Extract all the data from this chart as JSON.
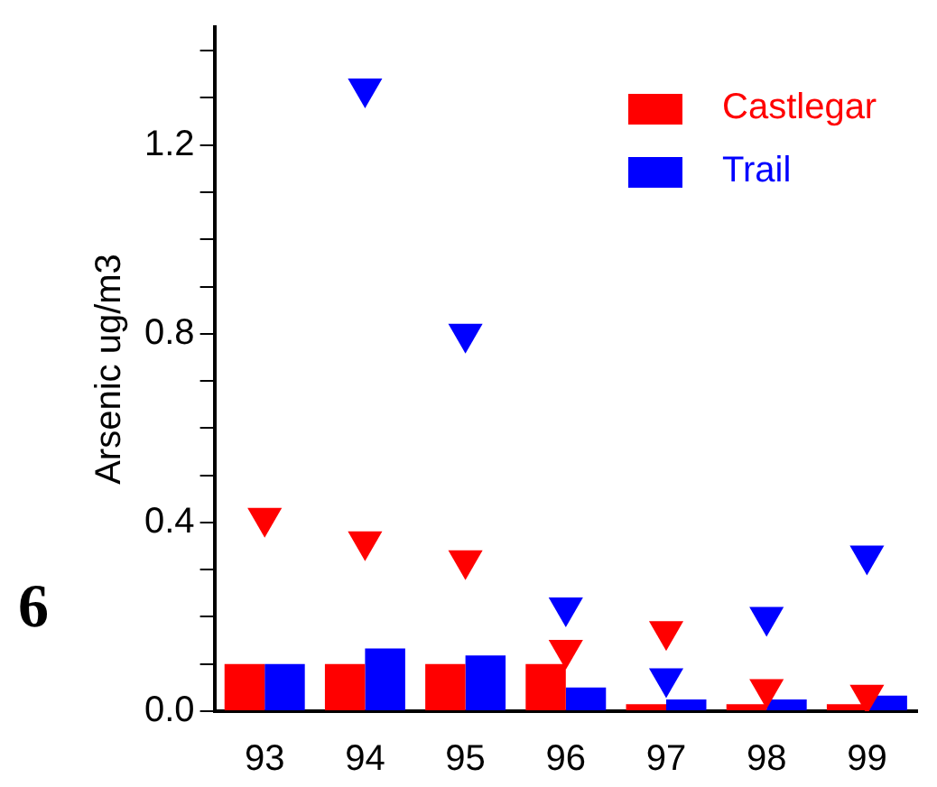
{
  "chart_data": {
    "type": "bar",
    "ylabel": "Arsenic ug/m3",
    "categories": [
      "93",
      "94",
      "95",
      "96",
      "97",
      "98",
      "99"
    ],
    "series": [
      {
        "name": "Castlegar",
        "color": "#ff0000",
        "values": [
          0.1,
          0.1,
          0.1,
          0.1,
          0.015,
          0.015,
          0.015
        ]
      },
      {
        "name": "Trail",
        "color": "#0000ff",
        "values": [
          0.1,
          0.133,
          0.118,
          0.05,
          0.025,
          0.025,
          0.033
        ]
      },
      {
        "type": "scatter",
        "color": "#ff0000",
        "x": [
          "93",
          "94",
          "95",
          "96",
          "97",
          "98",
          "99"
        ],
        "values": [
          0.41,
          0.36,
          0.32,
          0.13,
          0.17,
          0.047,
          0.035
        ]
      },
      {
        "type": "scatter",
        "color": "#0000ff",
        "x": [
          "93",
          "94",
          "95",
          "96",
          "97",
          "98",
          "99"
        ],
        "values": [
          null,
          1.32,
          0.8,
          0.22,
          0.07,
          0.2,
          0.33
        ]
      }
    ],
    "marker": "triangle",
    "ylim": [
      0,
      1.45
    ],
    "yticks": [
      {
        "value": 0,
        "label": "0.0"
      },
      {
        "value": 0.1,
        "label": null
      },
      {
        "value": 0.2,
        "label": null
      },
      {
        "value": 0.3,
        "label": null
      },
      0.4,
      {
        "value": 0.5,
        "label": null
      },
      {
        "value": 0.6,
        "label": null
      },
      {
        "value": 0.7,
        "label": null
      },
      0.8,
      {
        "value": 0.9,
        "label": null
      },
      {
        "value": 1.0,
        "label": null
      },
      {
        "value": 1.1,
        "label": null
      },
      1.2,
      {
        "value": 1.3,
        "label": null
      },
      {
        "value": 1.4,
        "label": null
      }
    ],
    "grid": false,
    "legend": "top right",
    "annotations": [
      "6"
    ]
  }
}
